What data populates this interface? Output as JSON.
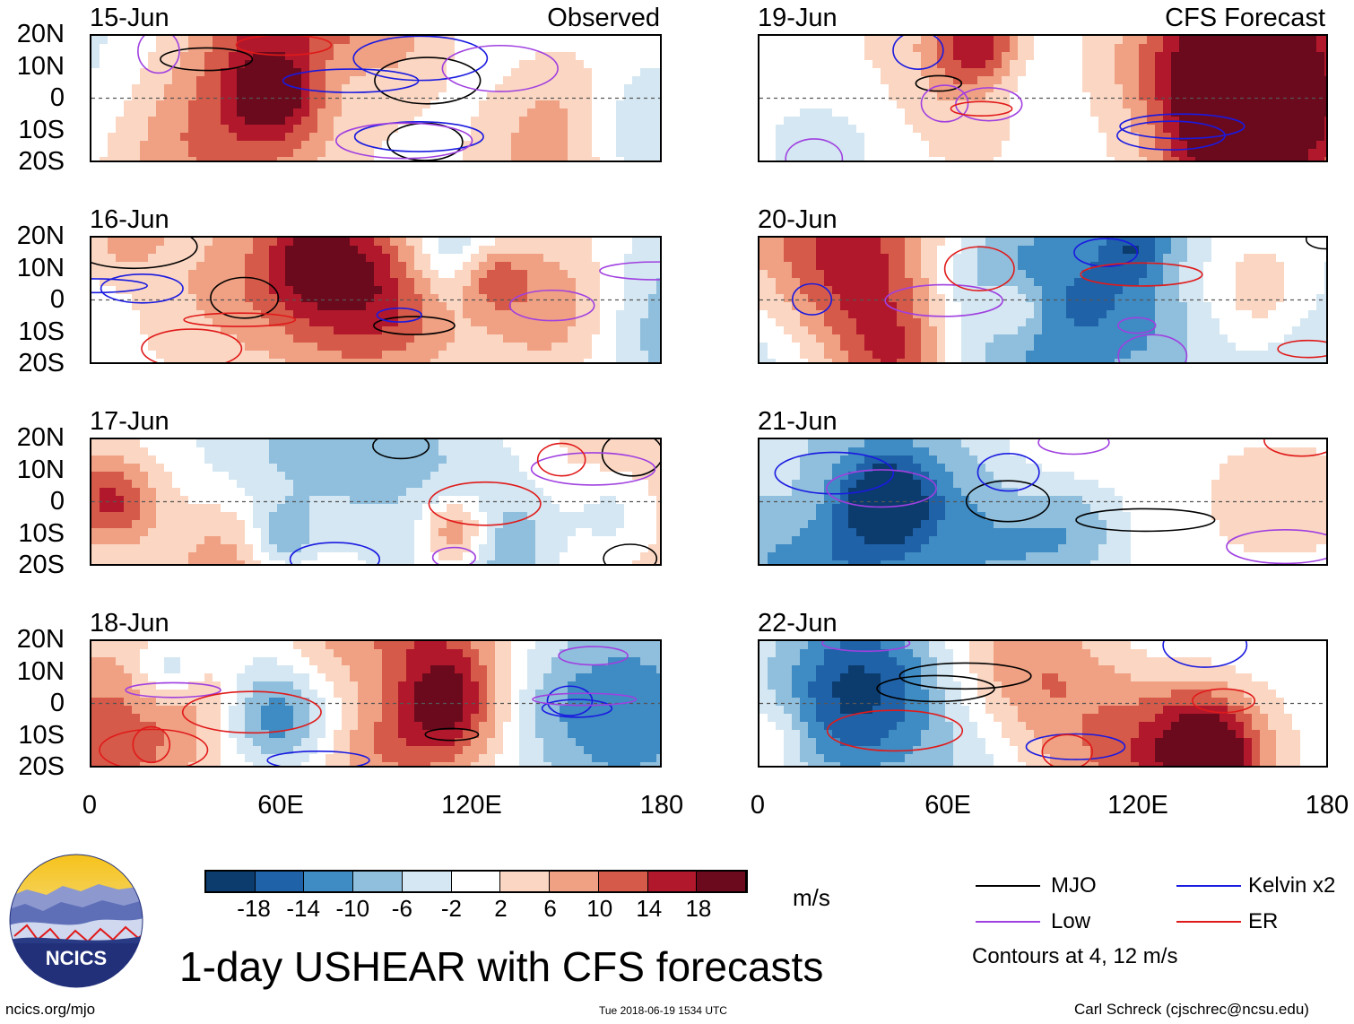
{
  "chart_data": {
    "type": "heatmap",
    "title": "1-day USHEAR with CFS forecasts",
    "variable": "USHEAR",
    "units": "m/s",
    "lat_range": [
      -20,
      20
    ],
    "lon_range": [
      0,
      180
    ],
    "y_ticks": [
      "20N",
      "10N",
      "0",
      "10S",
      "20S"
    ],
    "x_ticks": [
      "0",
      "60E",
      "120E",
      "180"
    ],
    "columns": [
      {
        "label": "Observed",
        "dates": [
          "15-Jun",
          "16-Jun",
          "17-Jun",
          "18-Jun"
        ]
      },
      {
        "label": "CFS Forecast",
        "dates": [
          "19-Jun",
          "20-Jun",
          "21-Jun",
          "22-Jun"
        ]
      }
    ],
    "colorbar": {
      "labels": [
        "-18",
        "-14",
        "-10",
        "-6",
        "-2",
        "2",
        "6",
        "10",
        "14",
        "18"
      ],
      "colors": [
        "#0c3b6e",
        "#1f62a8",
        "#3f8bc3",
        "#8fbfdd",
        "#d4e7f2",
        "#ffffff",
        "#fbd7c3",
        "#f0a083",
        "#d65a49",
        "#b2182b",
        "#6b0a1d"
      ]
    },
    "legend": {
      "items": [
        {
          "label": "MJO",
          "color": "#000000"
        },
        {
          "label": "Kelvin x2",
          "color": "#1a1ae0"
        },
        {
          "label": "Low",
          "color": "#a040e0"
        },
        {
          "label": "ER",
          "color": "#e01a1a"
        }
      ],
      "note": "Contours at 4, 12 m/s"
    }
  },
  "logo_text": "NCICS",
  "footer": {
    "left": "ncics.org/mjo",
    "center": "Tue 2018-06-19 1534 UTC",
    "right": "Carl Schreck (cjschrec@ncsu.edu)"
  }
}
